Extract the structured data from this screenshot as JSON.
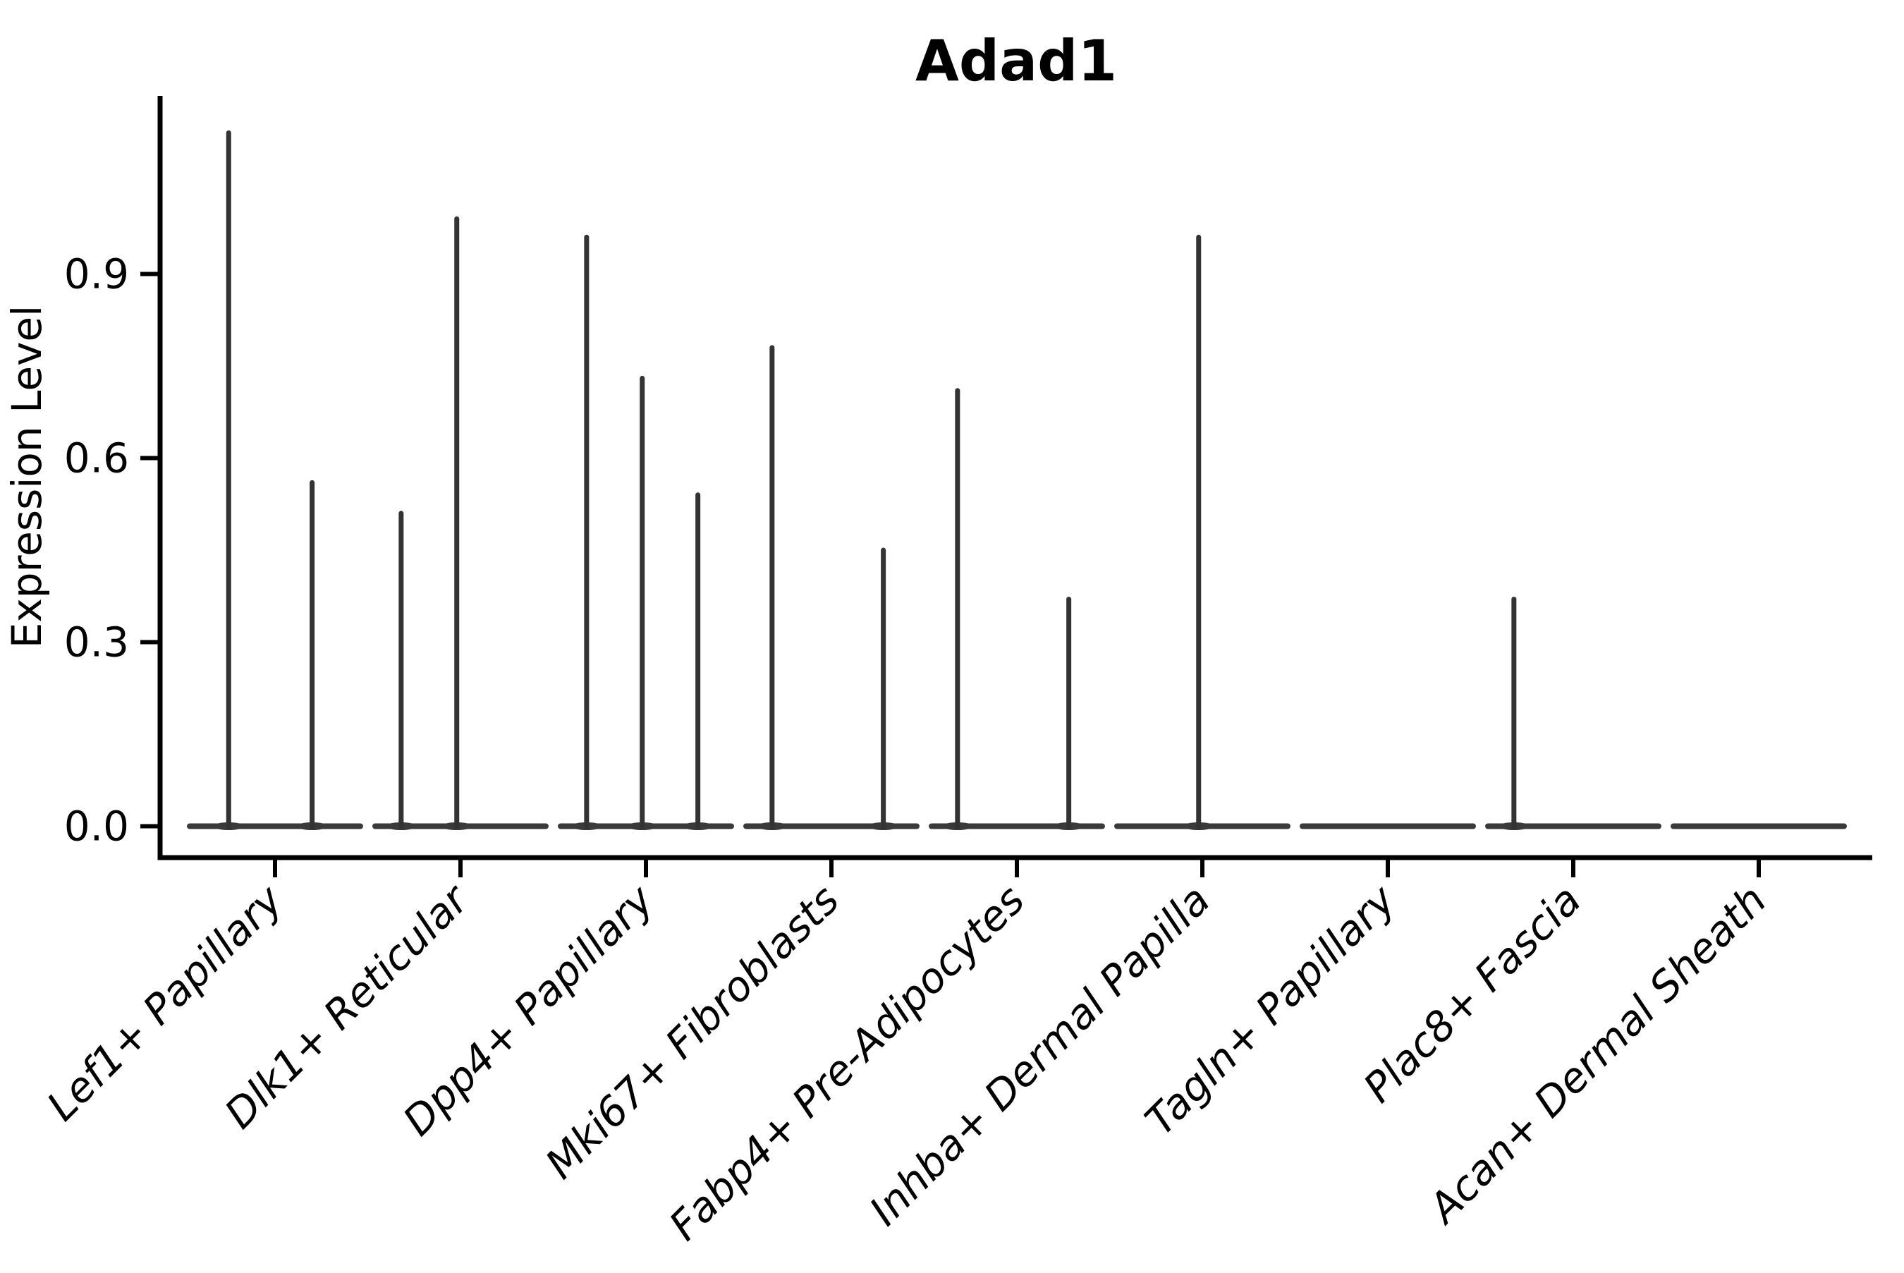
{
  "chart_data": {
    "type": "violin",
    "title": "Adad1",
    "xlabel": "",
    "ylabel": "Expression Level",
    "yticks": [
      0.0,
      0.3,
      0.6,
      0.9
    ],
    "ytick_labels": [
      "0.0",
      "0.3",
      "0.6",
      "0.9"
    ],
    "ylim": [
      -0.05,
      1.19
    ],
    "grid": false,
    "legend": "none",
    "categories": [
      "Lef1+ Papillary",
      "Dlk1+ Reticular",
      "Dpp4+ Papillary",
      "Mki67+ Fibroblasts",
      "Fabp4+ Pre-Adipocytes",
      "Inhba+ Dermal Papilla",
      "Tagln+ Papillary",
      "Plac8+ Fascia",
      "Acan+ Dermal Sheath"
    ],
    "violins": [
      {
        "category": "Lef1+ Papillary",
        "baseline_at": 0.0,
        "spikes": [
          {
            "pos": -0.25,
            "max": 1.13
          },
          {
            "pos": 0.2,
            "max": 0.56
          }
        ]
      },
      {
        "category": "Dlk1+ Reticular",
        "baseline_at": 0.0,
        "spikes": [
          {
            "pos": -0.32,
            "max": 0.51
          },
          {
            "pos": -0.02,
            "max": 0.99
          }
        ]
      },
      {
        "category": "Dpp4+ Papillary",
        "baseline_at": 0.0,
        "spikes": [
          {
            "pos": -0.32,
            "max": 0.96
          },
          {
            "pos": -0.02,
            "max": 0.73
          },
          {
            "pos": 0.28,
            "max": 0.54
          }
        ]
      },
      {
        "category": "Mki67+ Fibroblasts",
        "baseline_at": 0.0,
        "spikes": [
          {
            "pos": -0.32,
            "max": 0.78
          },
          {
            "pos": 0.28,
            "max": 0.45
          }
        ]
      },
      {
        "category": "Fabp4+ Pre-Adipocytes",
        "baseline_at": 0.0,
        "spikes": [
          {
            "pos": -0.32,
            "max": 0.71
          },
          {
            "pos": 0.28,
            "max": 0.37
          }
        ]
      },
      {
        "category": "Inhba+ Dermal Papilla",
        "baseline_at": 0.0,
        "spikes": [
          {
            "pos": -0.02,
            "max": 0.96
          }
        ]
      },
      {
        "category": "Tagln+ Papillary",
        "baseline_at": 0.0,
        "spikes": []
      },
      {
        "category": "Plac8+ Fascia",
        "baseline_at": 0.0,
        "spikes": [
          {
            "pos": -0.32,
            "max": 0.37
          }
        ]
      },
      {
        "category": "Acan+ Dermal Sheath",
        "baseline_at": 0.0,
        "spikes": []
      }
    ],
    "baseline_halfwidth_frac": 0.46,
    "colors": {
      "violin_stroke": "#333333",
      "baseline_stroke": "#3a3a3a",
      "axis": "#000000",
      "background": "#ffffff"
    }
  }
}
